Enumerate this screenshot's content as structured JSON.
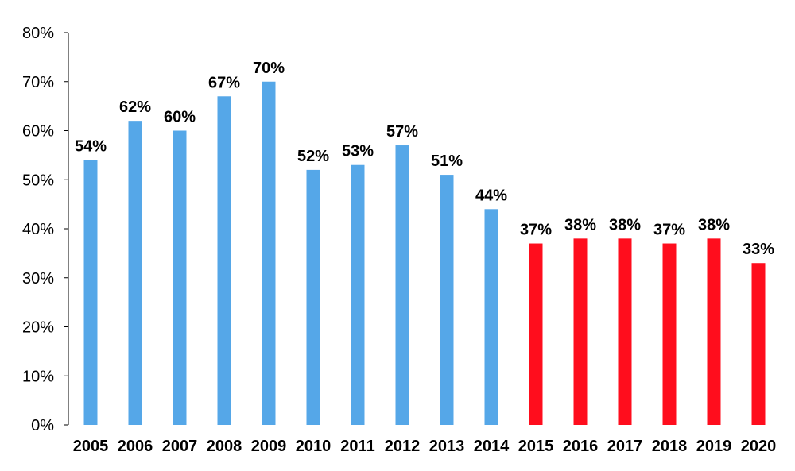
{
  "chart_data": {
    "type": "bar",
    "title": "",
    "xlabel": "",
    "ylabel": "",
    "categories": [
      "2005",
      "2006",
      "2007",
      "2008",
      "2009",
      "2010",
      "2011",
      "2012",
      "2013",
      "2014",
      "2015",
      "2016",
      "2017",
      "2018",
      "2019",
      "2020"
    ],
    "values": [
      54,
      62,
      60,
      67,
      70,
      52,
      53,
      57,
      51,
      44,
      37,
      38,
      38,
      37,
      38,
      33
    ],
    "data_labels": [
      "54%",
      "62%",
      "60%",
      "67%",
      "70%",
      "52%",
      "53%",
      "57%",
      "51%",
      "44%",
      "37%",
      "38%",
      "38%",
      "37%",
      "38%",
      "33%"
    ],
    "bar_colors": [
      "#55a7e8",
      "#55a7e8",
      "#55a7e8",
      "#55a7e8",
      "#55a7e8",
      "#55a7e8",
      "#55a7e8",
      "#55a7e8",
      "#55a7e8",
      "#55a7e8",
      "#ff0d1d",
      "#ff0d1d",
      "#ff0d1d",
      "#ff0d1d",
      "#ff0d1d",
      "#ff0d1d"
    ],
    "ylim": [
      0,
      80
    ],
    "yticks": [
      0,
      10,
      20,
      30,
      40,
      50,
      60,
      70,
      80
    ],
    "ytick_labels": [
      "0%",
      "10%",
      "20%",
      "30%",
      "40%",
      "50%",
      "60%",
      "70%",
      "80%"
    ],
    "grid": false,
    "legend": "none"
  }
}
